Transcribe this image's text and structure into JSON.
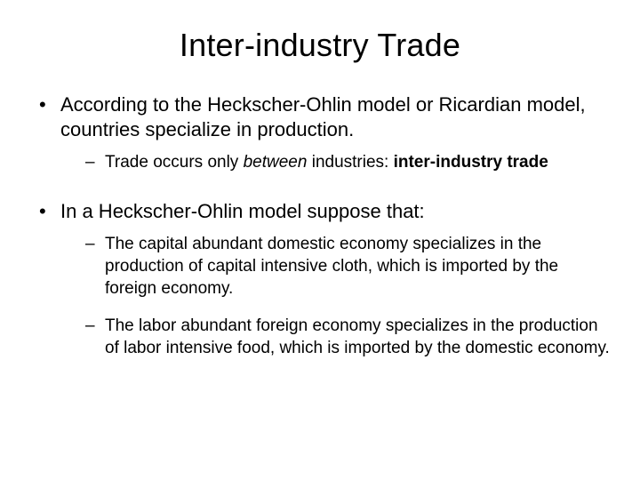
{
  "background_color": "#ffffff",
  "text_color": "#000000",
  "font_family": "Arial",
  "slide": {
    "title": "Inter-industry Trade",
    "title_fontsize": 36,
    "bullets": [
      {
        "text": "According to the Heckscher-Ohlin model or Ricardian model, countries specialize in production.",
        "fontsize": 22,
        "sub": [
          {
            "pre": "Trade occurs only ",
            "em": "between",
            "mid": " industries: ",
            "bold": "inter-industry trade",
            "post": "",
            "fontsize": 19
          }
        ]
      },
      {
        "text": "In a Heckscher-Ohlin model suppose that:",
        "fontsize": 22,
        "sub": [
          {
            "pre": "The capital abundant domestic economy specializes in the production of capital intensive cloth, which is imported by the foreign economy.",
            "em": "",
            "mid": "",
            "bold": "",
            "post": "",
            "fontsize": 19
          },
          {
            "pre": "The labor abundant foreign economy specializes in the production of labor intensive food, which is imported by the domestic economy.",
            "em": "",
            "mid": "",
            "bold": "",
            "post": "",
            "fontsize": 19
          }
        ]
      }
    ]
  }
}
